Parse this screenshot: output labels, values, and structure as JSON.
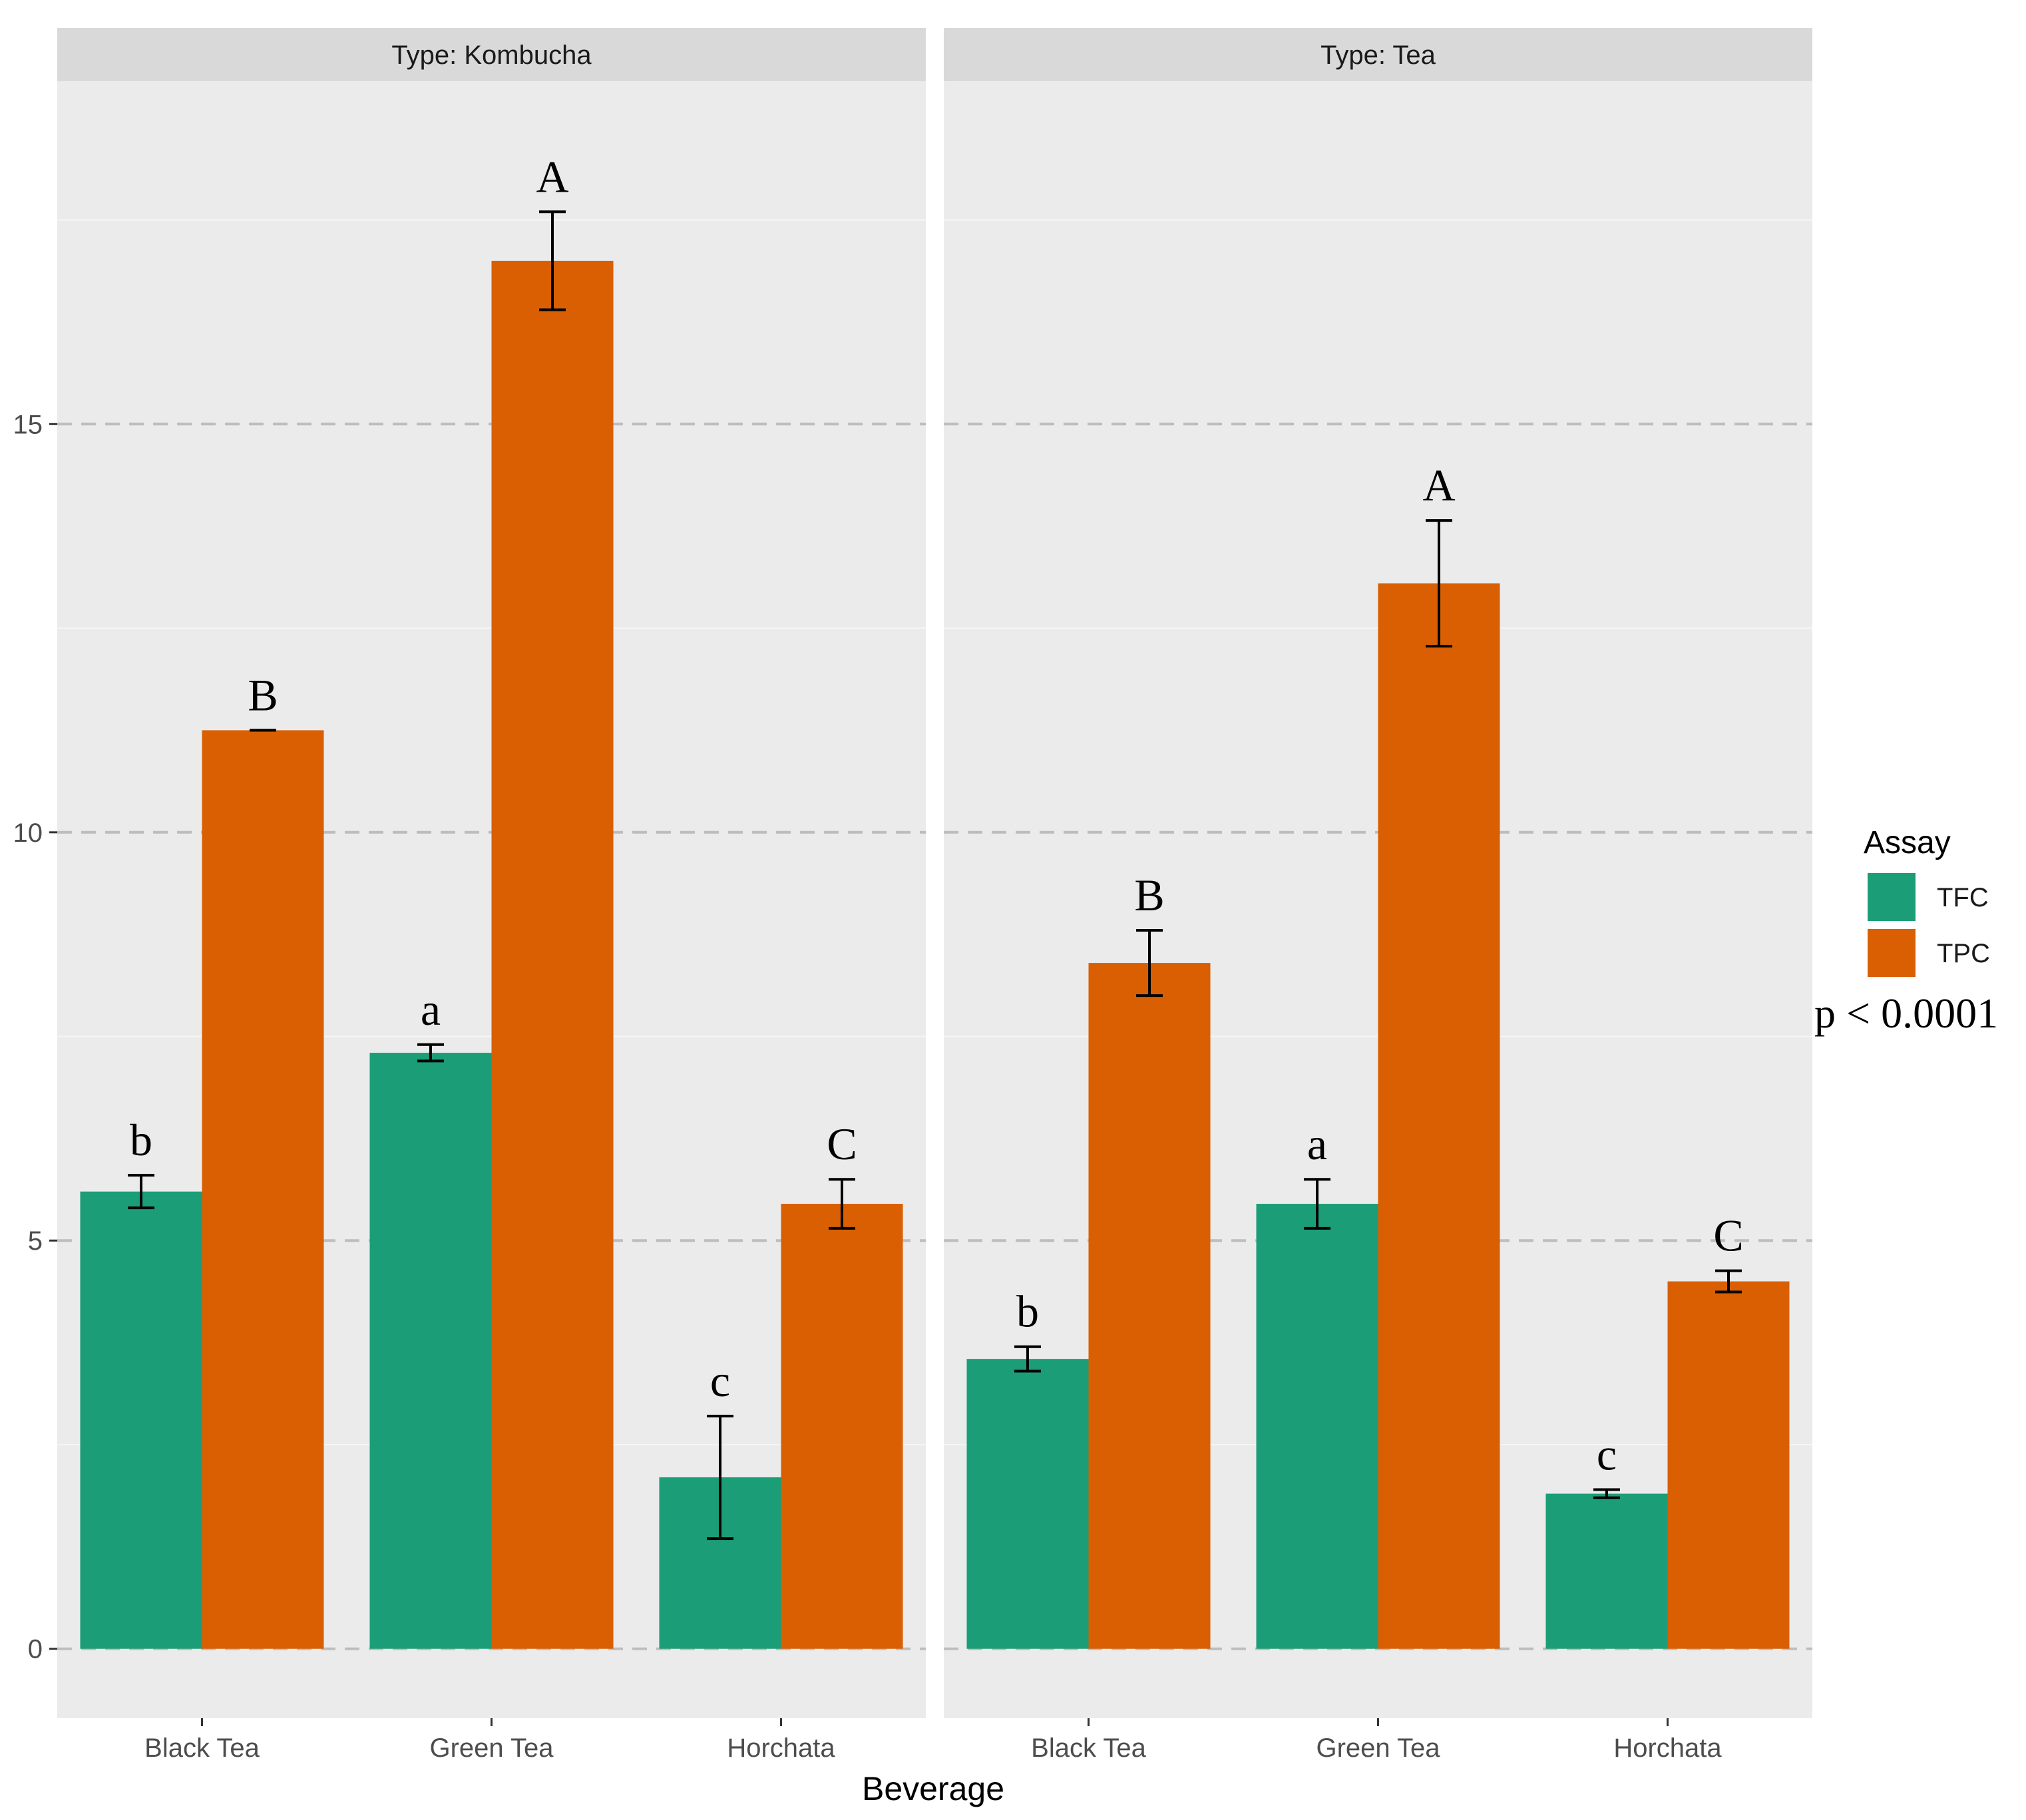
{
  "chart_data": {
    "type": "bar",
    "xlabel": "Beverage",
    "ylabel": "",
    "ylim": [
      -0.85,
      19.2
    ],
    "yticks": [
      0,
      5,
      10,
      15
    ],
    "grid": true,
    "legend": {
      "title": "Assay",
      "placement": "right",
      "entries": [
        "TFC",
        "TPC"
      ]
    },
    "colors": {
      "TFC": "#1b9e77",
      "TPC": "#d95f02"
    },
    "annotation": "p < 0.0001",
    "categories": [
      "Black Tea",
      "Green Tea",
      "Horchata"
    ],
    "panels": [
      {
        "strip_label": "Type: Kombucha",
        "series": [
          {
            "name": "TFC",
            "values": [
              5.6,
              7.3,
              2.1
            ],
            "errors": [
              0.2,
              0.1,
              0.75
            ],
            "letters": [
              "b",
              "a",
              "c"
            ]
          },
          {
            "name": "TPC",
            "values": [
              11.25,
              17.0,
              5.45
            ],
            "errors": [
              0.0,
              0.6,
              0.3
            ],
            "letters": [
              "B",
              "A",
              "C"
            ]
          }
        ]
      },
      {
        "strip_label": "Type: Tea",
        "series": [
          {
            "name": "TFC",
            "values": [
              3.55,
              5.45,
              1.9
            ],
            "errors": [
              0.15,
              0.3,
              0.05
            ],
            "letters": [
              "b",
              "a",
              "c"
            ]
          },
          {
            "name": "TPC",
            "values": [
              8.4,
              13.05,
              4.5
            ],
            "errors": [
              0.4,
              0.77,
              0.13
            ],
            "letters": [
              "B",
              "A",
              "C"
            ]
          }
        ]
      }
    ]
  }
}
